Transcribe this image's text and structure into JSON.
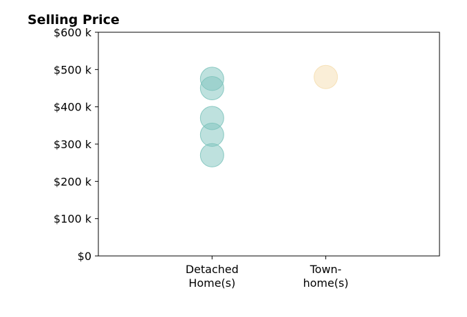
{
  "chart_data": {
    "type": "scatter",
    "title": "Selling Price",
    "xlabel": "",
    "ylabel": "",
    "categories": [
      [
        "Detached",
        "Home(s)"
      ],
      [
        "Town-",
        "home(s)"
      ]
    ],
    "ylim": [
      0,
      600
    ],
    "yticks": [
      {
        "value": 0,
        "label": "$0"
      },
      {
        "value": 100,
        "label": "$100 k"
      },
      {
        "value": 200,
        "label": "$200 k"
      },
      {
        "value": 300,
        "label": "$300 k"
      },
      {
        "value": 400,
        "label": "$400 k"
      },
      {
        "value": 500,
        "label": "$500 k"
      },
      {
        "value": 600,
        "label": "$600 k"
      }
    ],
    "grid": false,
    "series": [
      {
        "category_index": 0,
        "color": "#7ec4bd",
        "values": [
          475,
          450,
          370,
          325,
          270
        ]
      },
      {
        "category_index": 1,
        "color": "#f5deb0",
        "values": [
          480
        ]
      }
    ]
  }
}
